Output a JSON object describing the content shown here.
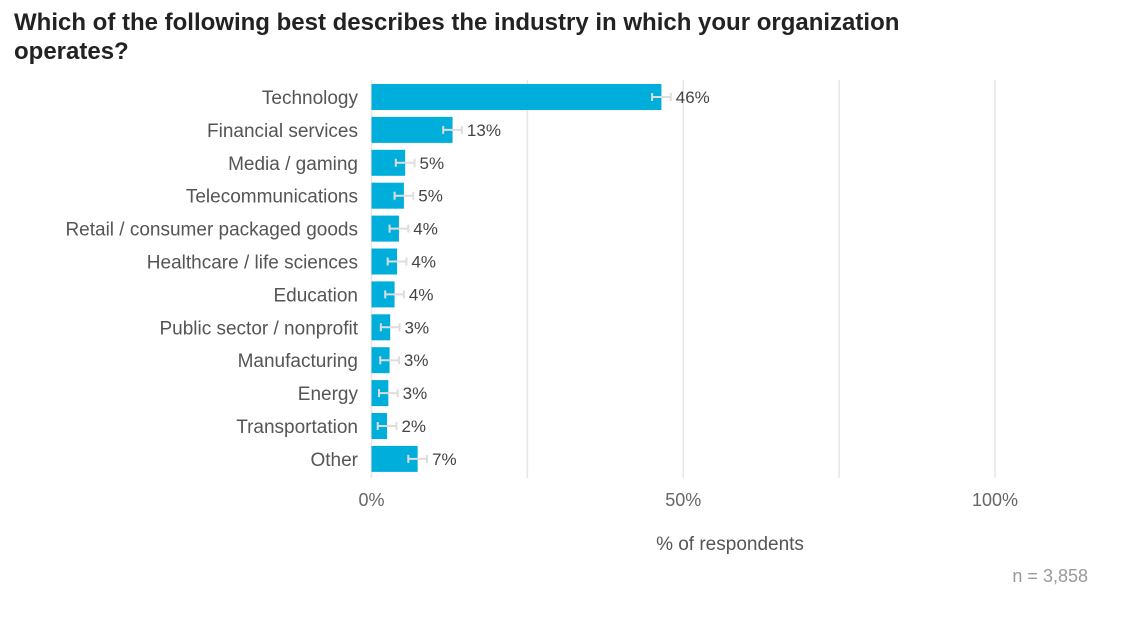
{
  "chart_data": {
    "type": "bar",
    "orientation": "horizontal",
    "title": "Which of the following best describes the industry in which your organization operates?",
    "xlabel": "% of respondents",
    "ylabel": "",
    "xlim": [
      0,
      120
    ],
    "ticks": [
      0,
      50,
      100
    ],
    "tick_labels": [
      "0%",
      "50%",
      "100%"
    ],
    "grid_lines": [
      0,
      25,
      50,
      75,
      100
    ],
    "categories": [
      "Technology",
      "Financial services",
      "Media / gaming",
      "Telecommunications",
      "Retail / consumer packaged goods",
      "Healthcare / life sciences",
      "Education",
      "Public sector / nonprofit",
      "Manufacturing",
      "Energy",
      "Transportation",
      "Other"
    ],
    "values": [
      46.5,
      13,
      5.4,
      5.2,
      4.4,
      4.1,
      3.7,
      3.0,
      2.9,
      2.7,
      2.5,
      7.4
    ],
    "value_labels": [
      "46%",
      "13%",
      "5%",
      "5%",
      "4%",
      "4%",
      "4%",
      "3%",
      "3%",
      "3%",
      "2%",
      "7%"
    ],
    "error_margin": 1.5,
    "bar_color": "#00aedb",
    "sample_size_label": "n =  3,858"
  }
}
